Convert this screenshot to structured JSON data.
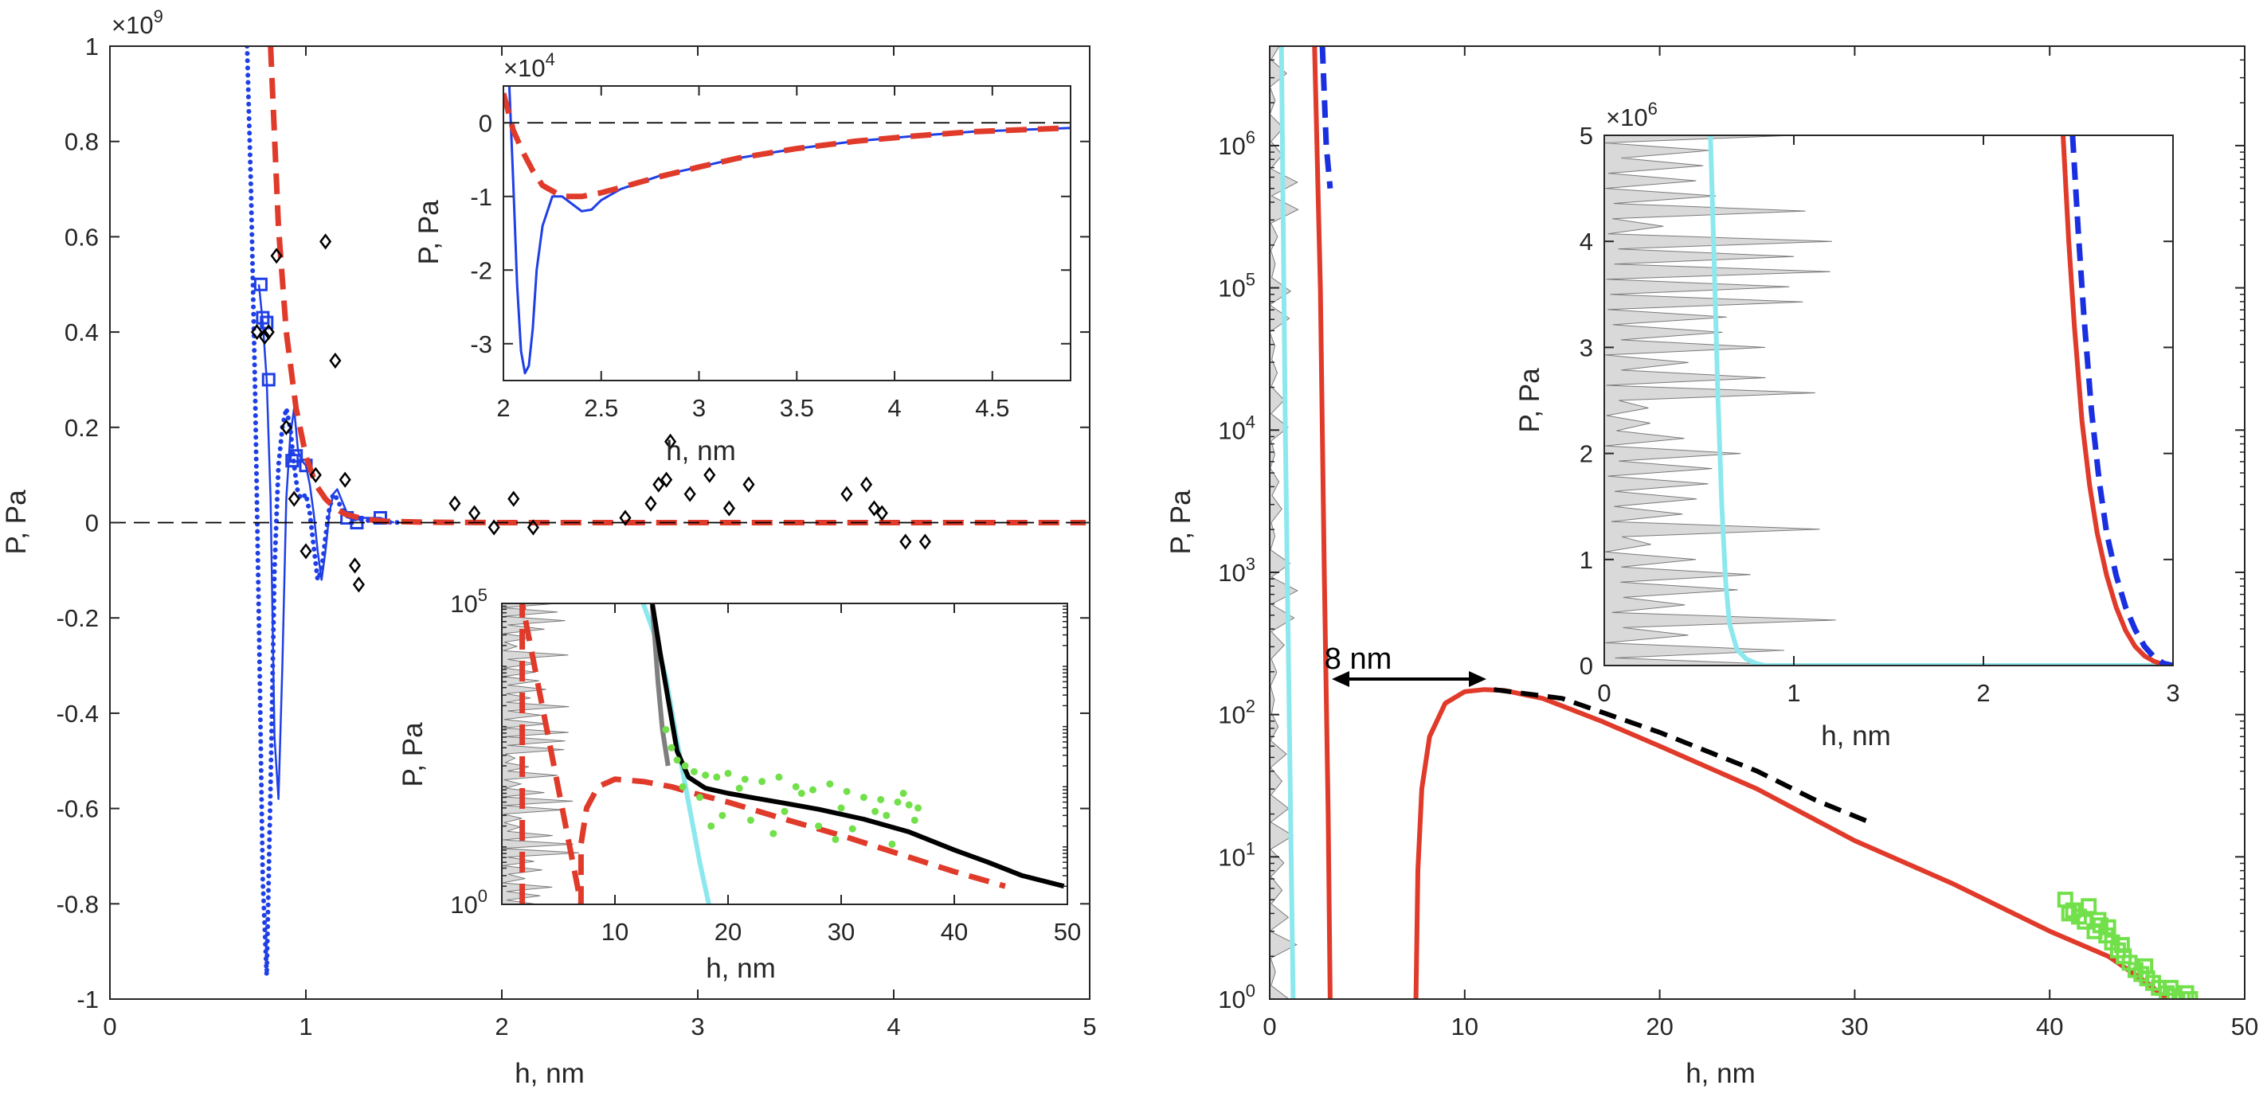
{
  "chart_data": [
    {
      "id": "left-main",
      "type": "line",
      "xlabel": "h, nm",
      "ylabel": "P, Pa",
      "xlim": [
        0,
        5
      ],
      "ylim": [
        -1,
        1
      ],
      "x_ticks": [
        "0",
        "1",
        "2",
        "3",
        "4",
        "5"
      ],
      "y_ticks": [
        "-1",
        "-0.8",
        "-0.6",
        "-0.4",
        "-0.2",
        "0",
        "0.2",
        "0.4",
        "0.6",
        "0.8",
        "1"
      ],
      "y_multiplier": "×10",
      "y_multiplier_exp": "9",
      "zero_line": "dashed",
      "colors": {
        "blue": "#1f3fe6",
        "red": "#e03a2a",
        "black": "#000000"
      },
      "series": [
        {
          "style": "blue-dotted",
          "x": [
            0.7,
            0.72,
            0.74,
            0.76,
            0.78,
            0.8,
            0.82,
            0.84,
            0.86,
            0.88,
            0.9,
            0.92,
            0.94,
            0.96,
            0.98,
            1.0,
            1.02,
            1.04,
            1.06,
            1.08,
            1.1,
            1.12,
            1.14,
            1.16,
            1.18,
            1.2,
            1.22,
            1.25,
            1.3,
            1.35,
            1.4,
            1.5
          ],
          "y": [
            1.0,
            0.7,
            0.3,
            -0.2,
            -0.75,
            -0.95,
            -0.55,
            -0.1,
            0.12,
            0.2,
            0.24,
            0.2,
            0.12,
            0.06,
            0.05,
            0.06,
            0.02,
            -0.05,
            -0.12,
            -0.1,
            -0.03,
            0.03,
            0.06,
            0.05,
            0.03,
            0.02,
            0.01,
            0.01,
            0.005,
            0.003,
            0.001,
            0.0
          ]
        },
        {
          "style": "blue-line-squares",
          "x": [
            0.76,
            0.78,
            0.8,
            0.82,
            0.84,
            0.86,
            0.88,
            0.9,
            0.92,
            0.94,
            0.96,
            0.98,
            1.0,
            1.02,
            1.04,
            1.06,
            1.08,
            1.1,
            1.12,
            1.14,
            1.16,
            1.18,
            1.2,
            1.22,
            1.25,
            1.3,
            1.38,
            1.45
          ],
          "y": [
            0.5,
            0.42,
            0.3,
            0.05,
            -0.45,
            -0.58,
            -0.3,
            0.05,
            0.18,
            0.24,
            0.15,
            0.13,
            0.12,
            0.08,
            0.02,
            -0.06,
            -0.12,
            -0.06,
            0.02,
            0.06,
            0.07,
            0.05,
            0.03,
            0.01,
            0.005,
            0.01,
            0.01,
            0.0
          ],
          "markers": [
            [
              0.77,
              0.5
            ],
            [
              0.78,
              0.43
            ],
            [
              0.8,
              0.42
            ],
            [
              0.81,
              0.3
            ],
            [
              0.93,
              0.13
            ],
            [
              0.95,
              0.14
            ],
            [
              1.0,
              0.12
            ],
            [
              1.21,
              0.01
            ],
            [
              1.26,
              0.0
            ],
            [
              1.38,
              0.01
            ]
          ]
        },
        {
          "style": "red-dashed",
          "x": [
            0.82,
            0.86,
            0.9,
            0.95,
            1.0,
            1.05,
            1.1,
            1.15,
            1.2,
            1.3,
            1.4,
            1.6,
            1.8,
            2.0,
            2.5,
            3.0,
            3.5,
            4.0,
            4.5,
            4.98
          ],
          "y": [
            1.0,
            0.62,
            0.4,
            0.24,
            0.14,
            0.08,
            0.05,
            0.03,
            0.018,
            0.007,
            0.003,
            0.001,
            0.0004,
            0.0,
            0.0,
            0.0,
            0.0,
            0.0,
            0.0,
            0.0
          ]
        },
        {
          "style": "black-diamonds",
          "x": [
            0.75,
            0.79,
            0.81,
            0.85,
            0.9,
            0.94,
            1.0,
            1.05,
            1.1,
            1.15,
            1.2,
            1.25,
            1.27,
            1.76,
            1.86,
            1.96,
            2.06,
            2.16,
            2.63,
            2.76,
            2.8,
            2.84,
            2.86,
            2.96,
            3.06,
            3.16,
            3.26,
            3.76,
            3.86,
            3.9,
            3.94,
            4.06,
            4.16
          ],
          "y": [
            0.4,
            0.39,
            0.4,
            0.56,
            0.2,
            0.05,
            -0.06,
            0.1,
            0.59,
            0.34,
            0.09,
            -0.09,
            -0.13,
            0.04,
            0.02,
            -0.01,
            0.05,
            -0.01,
            0.01,
            0.04,
            0.08,
            0.09,
            0.17,
            0.06,
            0.1,
            0.03,
            0.08,
            0.06,
            0.08,
            0.03,
            0.02,
            -0.04,
            -0.04
          ]
        }
      ]
    },
    {
      "id": "left-inset-top",
      "type": "line",
      "xlabel": "h, nm",
      "ylabel": "P, Pa",
      "xlim": [
        2,
        4.9
      ],
      "ylim": [
        -3.5,
        0.5
      ],
      "x_ticks": [
        "2",
        "2.5",
        "3",
        "3.5",
        "4",
        "4.5"
      ],
      "y_ticks": [
        "-3",
        "-2",
        "-1",
        "0"
      ],
      "y_multiplier": "×10",
      "y_multiplier_exp": "4",
      "zero_line": "dashed",
      "series": [
        {
          "style": "blue-line",
          "x": [
            2.03,
            2.05,
            2.07,
            2.09,
            2.11,
            2.13,
            2.15,
            2.17,
            2.2,
            2.25,
            2.3,
            2.35,
            2.4,
            2.45,
            2.5,
            2.6,
            2.8,
            3.0,
            3.2,
            3.5,
            3.8,
            4.1,
            4.4,
            4.9
          ],
          "y": [
            0.5,
            -0.8,
            -2.2,
            -3.1,
            -3.4,
            -3.3,
            -2.8,
            -2.0,
            -1.4,
            -1.0,
            -1.0,
            -1.1,
            -1.2,
            -1.18,
            -1.05,
            -0.9,
            -0.72,
            -0.6,
            -0.48,
            -0.35,
            -0.25,
            -0.18,
            -0.12,
            -0.07
          ]
        },
        {
          "style": "red-dashed",
          "x": [
            2.0,
            2.05,
            2.1,
            2.15,
            2.2,
            2.3,
            2.4,
            2.5,
            2.6,
            2.8,
            3.0,
            3.2,
            3.5,
            3.8,
            4.1,
            4.4,
            4.9
          ],
          "y": [
            0.4,
            -0.1,
            -0.4,
            -0.65,
            -0.85,
            -1.0,
            -1.0,
            -0.95,
            -0.88,
            -0.73,
            -0.6,
            -0.48,
            -0.35,
            -0.25,
            -0.18,
            -0.12,
            -0.07
          ]
        }
      ]
    },
    {
      "id": "left-inset-bottom",
      "type": "line",
      "xlabel": "h, nm",
      "ylabel": "P, Pa",
      "xlim": [
        0,
        50
      ],
      "yscale": "log",
      "ylim": [
        1,
        100000
      ],
      "x_ticks": [
        "10",
        "20",
        "30",
        "40",
        "50"
      ],
      "y_ticks": [
        {
          "base": "10",
          "exp": "0"
        },
        {
          "base": "10",
          "exp": "5"
        }
      ],
      "series": [
        {
          "style": "gray-filled-profile",
          "x_extent": [
            0,
            7
          ]
        },
        {
          "style": "cyan-line",
          "x": [
            12.5,
            13.5,
            14.5,
            15.5,
            16.5,
            17.5,
            18.3
          ],
          "y": [
            100000,
            30000,
            6000,
            500,
            50,
            5,
            1
          ]
        },
        {
          "style": "gray-line",
          "x": [
            13.3,
            13.5,
            13.8,
            14.2,
            14.7
          ],
          "y": [
            90000,
            30000,
            5000,
            800,
            200
          ]
        },
        {
          "style": "black-line",
          "x": [
            13.3,
            14.0,
            14.8,
            15.5,
            16.5,
            18.0,
            20.0,
            22.0,
            25.0,
            28.0,
            32.0,
            36.0,
            40.0,
            43.0,
            46.0,
            49.7
          ],
          "y": [
            100000,
            15000,
            2000,
            350,
            130,
            85,
            70,
            60,
            48,
            38,
            26,
            16,
            8,
            5,
            3,
            2
          ]
        },
        {
          "style": "red-dashed",
          "x": [
            1.8,
            1.8,
            7.0,
            7.0,
            7.5,
            8.5,
            10.0,
            12.5,
            15.0,
            17.0,
            20.0,
            25.0,
            30.0,
            35.0,
            40.0,
            44.5
          ],
          "y": [
            1,
            100000,
            1,
            10,
            40,
            90,
            120,
            110,
            90,
            70,
            50,
            26,
            14,
            7,
            3.5,
            2
          ]
        },
        {
          "style": "green-dots",
          "x": [
            14.5,
            15.0,
            15.5,
            16.2,
            17.0,
            18.0,
            19.0,
            20.0,
            21.5,
            23.0,
            24.5,
            26.0,
            27.5,
            29.0,
            30.5,
            32.0,
            33.5,
            35.0,
            36.0,
            36.8,
            17.5,
            19.5,
            22.0,
            25.0,
            28.0,
            31.0,
            34.0,
            36.5,
            16.0,
            21.0,
            26.5,
            30.0,
            33.0,
            35.5,
            18.5,
            24.0,
            29.5,
            34.5
          ],
          "y": [
            800,
            400,
            250,
            200,
            160,
            140,
            130,
            150,
            120,
            110,
            130,
            90,
            80,
            100,
            75,
            60,
            55,
            50,
            45,
            40,
            60,
            30,
            25,
            35,
            20,
            18,
            30,
            25,
            90,
            85,
            70,
            40,
            35,
            70,
            20,
            15,
            12,
            10
          ]
        }
      ]
    },
    {
      "id": "right-main",
      "type": "line",
      "xlabel": "h, nm",
      "ylabel": "P, Pa",
      "xlim": [
        0,
        50
      ],
      "yscale": "log",
      "ylim": [
        1,
        5000000
      ],
      "x_ticks": [
        "0",
        "10",
        "20",
        "30",
        "40",
        "50"
      ],
      "y_ticks": [
        {
          "base": "10",
          "exp": "0"
        },
        {
          "base": "10",
          "exp": "1"
        },
        {
          "base": "10",
          "exp": "2"
        },
        {
          "base": "10",
          "exp": "3"
        },
        {
          "base": "10",
          "exp": "4"
        },
        {
          "base": "10",
          "exp": "5"
        },
        {
          "base": "10",
          "exp": "6"
        }
      ],
      "annotation": "8 nm",
      "series": [
        {
          "style": "gray-filled-profile",
          "x_extent": [
            0,
            1.5
          ]
        },
        {
          "style": "cyan-line",
          "x": [
            0.6,
            0.8,
            1.0,
            1.2
          ],
          "y": [
            5000000,
            10000,
            100,
            1
          ]
        },
        {
          "style": "red-line",
          "x": [
            2.3,
            2.6,
            2.8,
            3.0,
            3.1
          ],
          "y": [
            5000000,
            100000,
            1000,
            20,
            1
          ]
        },
        {
          "style": "red-line",
          "x": [
            7.5,
            7.6,
            7.8,
            8.2,
            9.0,
            10.0,
            11.0,
            12.0,
            14.0,
            17.0,
            20.0,
            25.0,
            30.0,
            35.0,
            40.0,
            43.0,
            45.0,
            46.0
          ],
          "y": [
            1,
            8,
            30,
            70,
            120,
            145,
            150,
            148,
            130,
            90,
            60,
            30,
            13,
            6.5,
            3.0,
            2.0,
            1.3,
            1
          ]
        },
        {
          "style": "blue-dashed",
          "x": [
            2.7,
            2.9,
            3.1
          ],
          "y": [
            5000000,
            1000000,
            500000
          ]
        },
        {
          "style": "black-dashed",
          "x": [
            11.5,
            15.0,
            20.0,
            25.0,
            28.0,
            31.0
          ],
          "y": [
            150,
            130,
            75,
            40,
            25,
            17
          ]
        },
        {
          "style": "green-squares",
          "x": [
            40.8,
            41.2,
            41.5,
            41.8,
            42.0,
            42.3,
            42.6,
            42.9,
            43.2,
            43.5,
            43.8,
            44.1,
            44.4,
            44.7,
            45.0,
            45.3,
            45.6,
            46.0,
            46.4,
            46.8,
            47.2,
            41.0,
            42.5,
            43.7,
            44.9,
            46.2,
            47.0,
            43.0
          ],
          "y": [
            5,
            4.2,
            3.8,
            3.5,
            4.5,
            3.0,
            3.3,
            2.8,
            2.5,
            2.2,
            2.0,
            1.8,
            1.6,
            1.5,
            1.4,
            1.3,
            1.2,
            1.1,
            1.05,
            1.0,
            1.0,
            4.0,
            3.6,
            2.4,
            1.7,
            1.2,
            1.1,
            3.2
          ]
        }
      ]
    },
    {
      "id": "right-inset",
      "type": "line",
      "xlabel": "h, nm",
      "ylabel": "P, Pa",
      "xlim": [
        0,
        3
      ],
      "ylim": [
        0,
        5
      ],
      "x_ticks": [
        "0",
        "1",
        "2",
        "3"
      ],
      "y_ticks": [
        "0",
        "1",
        "2",
        "3",
        "4",
        "5"
      ],
      "y_multiplier": "×10",
      "y_multiplier_exp": "6",
      "series": [
        {
          "style": "gray-filled-profile",
          "x_extent": [
            0,
            1.25
          ]
        },
        {
          "style": "cyan-line",
          "x": [
            0.56,
            0.58,
            0.6,
            0.62,
            0.64,
            0.66,
            0.7,
            0.75,
            0.8,
            0.85,
            3.0
          ],
          "y": [
            5.0,
            3.8,
            2.5,
            1.5,
            0.8,
            0.4,
            0.15,
            0.06,
            0.02,
            0.0,
            0.0
          ]
        },
        {
          "style": "red-line",
          "x": [
            2.42,
            2.45,
            2.48,
            2.52,
            2.56,
            2.6,
            2.65,
            2.7,
            2.75,
            2.8,
            2.85,
            2.9,
            2.95,
            3.0
          ],
          "y": [
            5.0,
            4.0,
            3.2,
            2.3,
            1.7,
            1.25,
            0.85,
            0.55,
            0.33,
            0.18,
            0.09,
            0.04,
            0.01,
            0.0
          ]
        },
        {
          "style": "blue-dashed",
          "x": [
            2.47,
            2.5,
            2.53,
            2.57,
            2.61,
            2.65,
            2.7,
            2.75,
            2.8,
            2.85,
            2.9,
            2.95,
            3.0
          ],
          "y": [
            5.0,
            4.1,
            3.3,
            2.4,
            1.75,
            1.25,
            0.85,
            0.55,
            0.34,
            0.18,
            0.08,
            0.02,
            0.0
          ]
        }
      ]
    }
  ]
}
